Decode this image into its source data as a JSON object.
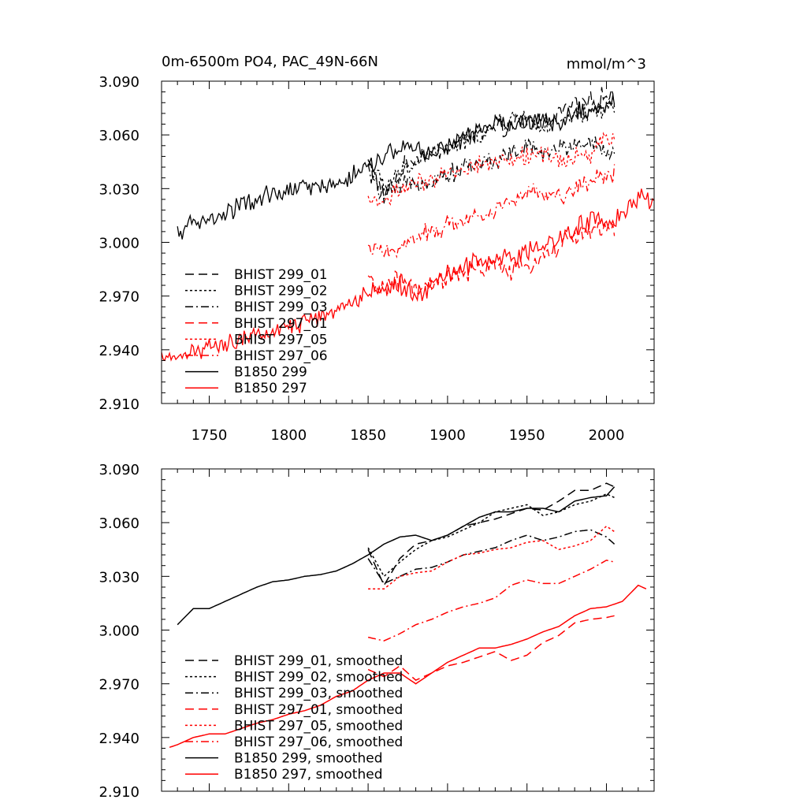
{
  "chart_data": [
    {
      "type": "line",
      "title": "0m-6500m PO4, PAC_49N-66N",
      "units": "mmol/m^3",
      "xlim": [
        1720,
        2030
      ],
      "ylim": [
        2.91,
        3.09
      ],
      "xticks": [
        "1750",
        "1800",
        "1850",
        "1900",
        "1950",
        "2000"
      ],
      "yticks": [
        "2.910",
        "2.940",
        "2.970",
        "3.000",
        "3.030",
        "3.060",
        "3.090"
      ],
      "grid": false,
      "legend_position": "lower-left",
      "series": [
        {
          "name": "BHIST 299_01",
          "color": "#000000",
          "dash": "dash",
          "x_start": 1850,
          "x_end": 2005,
          "knots": [
            [
              1850,
              3.045
            ],
            [
              1860,
              3.025
            ],
            [
              1870,
              3.04
            ],
            [
              1880,
              3.048
            ],
            [
              1890,
              3.05
            ],
            [
              1900,
              3.053
            ],
            [
              1910,
              3.058
            ],
            [
              1920,
              3.06
            ],
            [
              1930,
              3.062
            ],
            [
              1940,
              3.065
            ],
            [
              1950,
              3.068
            ],
            [
              1960,
              3.067
            ],
            [
              1970,
              3.072
            ],
            [
              1980,
              3.078
            ],
            [
              1990,
              3.078
            ],
            [
              2000,
              3.082
            ],
            [
              2005,
              3.08
            ]
          ]
        },
        {
          "name": "BHIST 299_02",
          "color": "#000000",
          "dash": "dot",
          "x_start": 1850,
          "x_end": 2005,
          "knots": [
            [
              1850,
              3.046
            ],
            [
              1860,
              3.03
            ],
            [
              1870,
              3.038
            ],
            [
              1880,
              3.045
            ],
            [
              1890,
              3.05
            ],
            [
              1900,
              3.052
            ],
            [
              1910,
              3.056
            ],
            [
              1920,
              3.06
            ],
            [
              1930,
              3.066
            ],
            [
              1940,
              3.068
            ],
            [
              1950,
              3.07
            ],
            [
              1960,
              3.064
            ],
            [
              1970,
              3.066
            ],
            [
              1980,
              3.07
            ],
            [
              1990,
              3.072
            ],
            [
              2000,
              3.076
            ],
            [
              2005,
              3.074
            ]
          ]
        },
        {
          "name": "BHIST 299_03",
          "color": "#000000",
          "dash": "dashdot",
          "x_start": 1850,
          "x_end": 2005,
          "knots": [
            [
              1850,
              3.04
            ],
            [
              1860,
              3.026
            ],
            [
              1870,
              3.03
            ],
            [
              1880,
              3.034
            ],
            [
              1890,
              3.035
            ],
            [
              1900,
              3.038
            ],
            [
              1910,
              3.042
            ],
            [
              1920,
              3.044
            ],
            [
              1930,
              3.046
            ],
            [
              1940,
              3.05
            ],
            [
              1950,
              3.053
            ],
            [
              1960,
              3.05
            ],
            [
              1970,
              3.052
            ],
            [
              1980,
              3.055
            ],
            [
              1990,
              3.056
            ],
            [
              2000,
              3.052
            ],
            [
              2005,
              3.048
            ]
          ]
        },
        {
          "name": "BHIST 297_01",
          "color": "#ff0000",
          "dash": "dash",
          "x_start": 1850,
          "x_end": 2005,
          "knots": [
            [
              1850,
              2.978
            ],
            [
              1860,
              2.974
            ],
            [
              1870,
              2.98
            ],
            [
              1880,
              2.972
            ],
            [
              1890,
              2.976
            ],
            [
              1900,
              2.98
            ],
            [
              1910,
              2.982
            ],
            [
              1920,
              2.985
            ],
            [
              1930,
              2.988
            ],
            [
              1940,
              2.983
            ],
            [
              1950,
              2.986
            ],
            [
              1960,
              2.993
            ],
            [
              1970,
              2.997
            ],
            [
              1980,
              3.004
            ],
            [
              1990,
              3.006
            ],
            [
              2000,
              3.007
            ],
            [
              2005,
              3.008
            ]
          ]
        },
        {
          "name": "BHIST 297_05",
          "color": "#ff0000",
          "dash": "dot",
          "x_start": 1850,
          "x_end": 2005,
          "knots": [
            [
              1850,
              3.023
            ],
            [
              1860,
              3.023
            ],
            [
              1870,
              3.03
            ],
            [
              1880,
              3.032
            ],
            [
              1890,
              3.033
            ],
            [
              1900,
              3.038
            ],
            [
              1910,
              3.042
            ],
            [
              1920,
              3.043
            ],
            [
              1930,
              3.045
            ],
            [
              1940,
              3.046
            ],
            [
              1950,
              3.049
            ],
            [
              1960,
              3.05
            ],
            [
              1970,
              3.045
            ],
            [
              1980,
              3.047
            ],
            [
              1990,
              3.05
            ],
            [
              2000,
              3.058
            ],
            [
              2005,
              3.055
            ]
          ]
        },
        {
          "name": "BHIST 297_06",
          "color": "#ff0000",
          "dash": "dashdot",
          "x_start": 1850,
          "x_end": 2005,
          "knots": [
            [
              1850,
              2.996
            ],
            [
              1860,
              2.994
            ],
            [
              1870,
              2.998
            ],
            [
              1880,
              3.003
            ],
            [
              1890,
              3.006
            ],
            [
              1900,
              3.01
            ],
            [
              1910,
              3.013
            ],
            [
              1920,
              3.015
            ],
            [
              1930,
              3.018
            ],
            [
              1940,
              3.025
            ],
            [
              1950,
              3.028
            ],
            [
              1960,
              3.026
            ],
            [
              1970,
              3.026
            ],
            [
              1980,
              3.03
            ],
            [
              1990,
              3.034
            ],
            [
              2000,
              3.039
            ],
            [
              2005,
              3.038
            ]
          ]
        },
        {
          "name": "B1850 299",
          "color": "#000000",
          "dash": "solid",
          "x_start": 1730,
          "x_end": 2005,
          "knots": [
            [
              1730,
              3.003
            ],
            [
              1740,
              3.012
            ],
            [
              1750,
              3.012
            ],
            [
              1760,
              3.016
            ],
            [
              1770,
              3.02
            ],
            [
              1780,
              3.024
            ],
            [
              1790,
              3.027
            ],
            [
              1800,
              3.028
            ],
            [
              1810,
              3.03
            ],
            [
              1820,
              3.031
            ],
            [
              1830,
              3.033
            ],
            [
              1840,
              3.037
            ],
            [
              1850,
              3.042
            ],
            [
              1860,
              3.048
            ],
            [
              1870,
              3.052
            ],
            [
              1880,
              3.053
            ],
            [
              1890,
              3.05
            ],
            [
              1900,
              3.053
            ],
            [
              1910,
              3.058
            ],
            [
              1920,
              3.063
            ],
            [
              1930,
              3.066
            ],
            [
              1940,
              3.066
            ],
            [
              1950,
              3.068
            ],
            [
              1960,
              3.068
            ],
            [
              1970,
              3.066
            ],
            [
              1980,
              3.072
            ],
            [
              1990,
              3.074
            ],
            [
              2000,
              3.075
            ],
            [
              2005,
              3.08
            ]
          ]
        },
        {
          "name": "B1850 297",
          "color": "#ff0000",
          "dash": "solid",
          "x_start": 1720,
          "x_end": 2030,
          "knots": [
            [
              1720,
              2.933
            ],
            [
              1730,
              2.936
            ],
            [
              1740,
              2.94
            ],
            [
              1750,
              2.942
            ],
            [
              1760,
              2.942
            ],
            [
              1770,
              2.945
            ],
            [
              1780,
              2.948
            ],
            [
              1790,
              2.95
            ],
            [
              1800,
              2.953
            ],
            [
              1810,
              2.955
            ],
            [
              1820,
              2.958
            ],
            [
              1830,
              2.963
            ],
            [
              1840,
              2.966
            ],
            [
              1850,
              2.972
            ],
            [
              1860,
              2.976
            ],
            [
              1870,
              2.976
            ],
            [
              1880,
              2.97
            ],
            [
              1890,
              2.976
            ],
            [
              1900,
              2.982
            ],
            [
              1910,
              2.986
            ],
            [
              1920,
              2.99
            ],
            [
              1930,
              2.99
            ],
            [
              1940,
              2.992
            ],
            [
              1950,
              2.995
            ],
            [
              1960,
              2.999
            ],
            [
              1970,
              3.002
            ],
            [
              1980,
              3.008
            ],
            [
              1990,
              3.012
            ],
            [
              2000,
              3.013
            ],
            [
              2010,
              3.016
            ],
            [
              2020,
              3.025
            ],
            [
              2030,
              3.021
            ]
          ]
        }
      ]
    },
    {
      "type": "line",
      "title": "",
      "units": "",
      "xlim": [
        1720,
        2030
      ],
      "ylim": [
        2.91,
        3.09
      ],
      "xticks": [],
      "yticks": [
        "2.910",
        "2.940",
        "2.970",
        "3.000",
        "3.030",
        "3.060",
        "3.090"
      ],
      "grid": false,
      "legend_position": "lower-left",
      "series": [
        {
          "name": "BHIST 299_01, smoothed",
          "color": "#000000",
          "dash": "dash",
          "x_start": 1850,
          "x_end": 2005
        },
        {
          "name": "BHIST 299_02, smoothed",
          "color": "#000000",
          "dash": "dot",
          "x_start": 1850,
          "x_end": 2005
        },
        {
          "name": "BHIST 299_03, smoothed",
          "color": "#000000",
          "dash": "dashdot",
          "x_start": 1850,
          "x_end": 2005
        },
        {
          "name": "BHIST 297_01, smoothed",
          "color": "#ff0000",
          "dash": "dash",
          "x_start": 1850,
          "x_end": 2005
        },
        {
          "name": "BHIST 297_05, smoothed",
          "color": "#ff0000",
          "dash": "dot",
          "x_start": 1850,
          "x_end": 2005
        },
        {
          "name": "BHIST 297_06, smoothed",
          "color": "#ff0000",
          "dash": "dashdot",
          "x_start": 1850,
          "x_end": 2005
        },
        {
          "name": "B1850 299, smoothed",
          "color": "#000000",
          "dash": "solid",
          "x_start": 1730,
          "x_end": 2005
        },
        {
          "name": "B1850 297, smoothed",
          "color": "#ff0000",
          "dash": "solid",
          "x_start": 1725,
          "x_end": 2025
        }
      ]
    }
  ]
}
